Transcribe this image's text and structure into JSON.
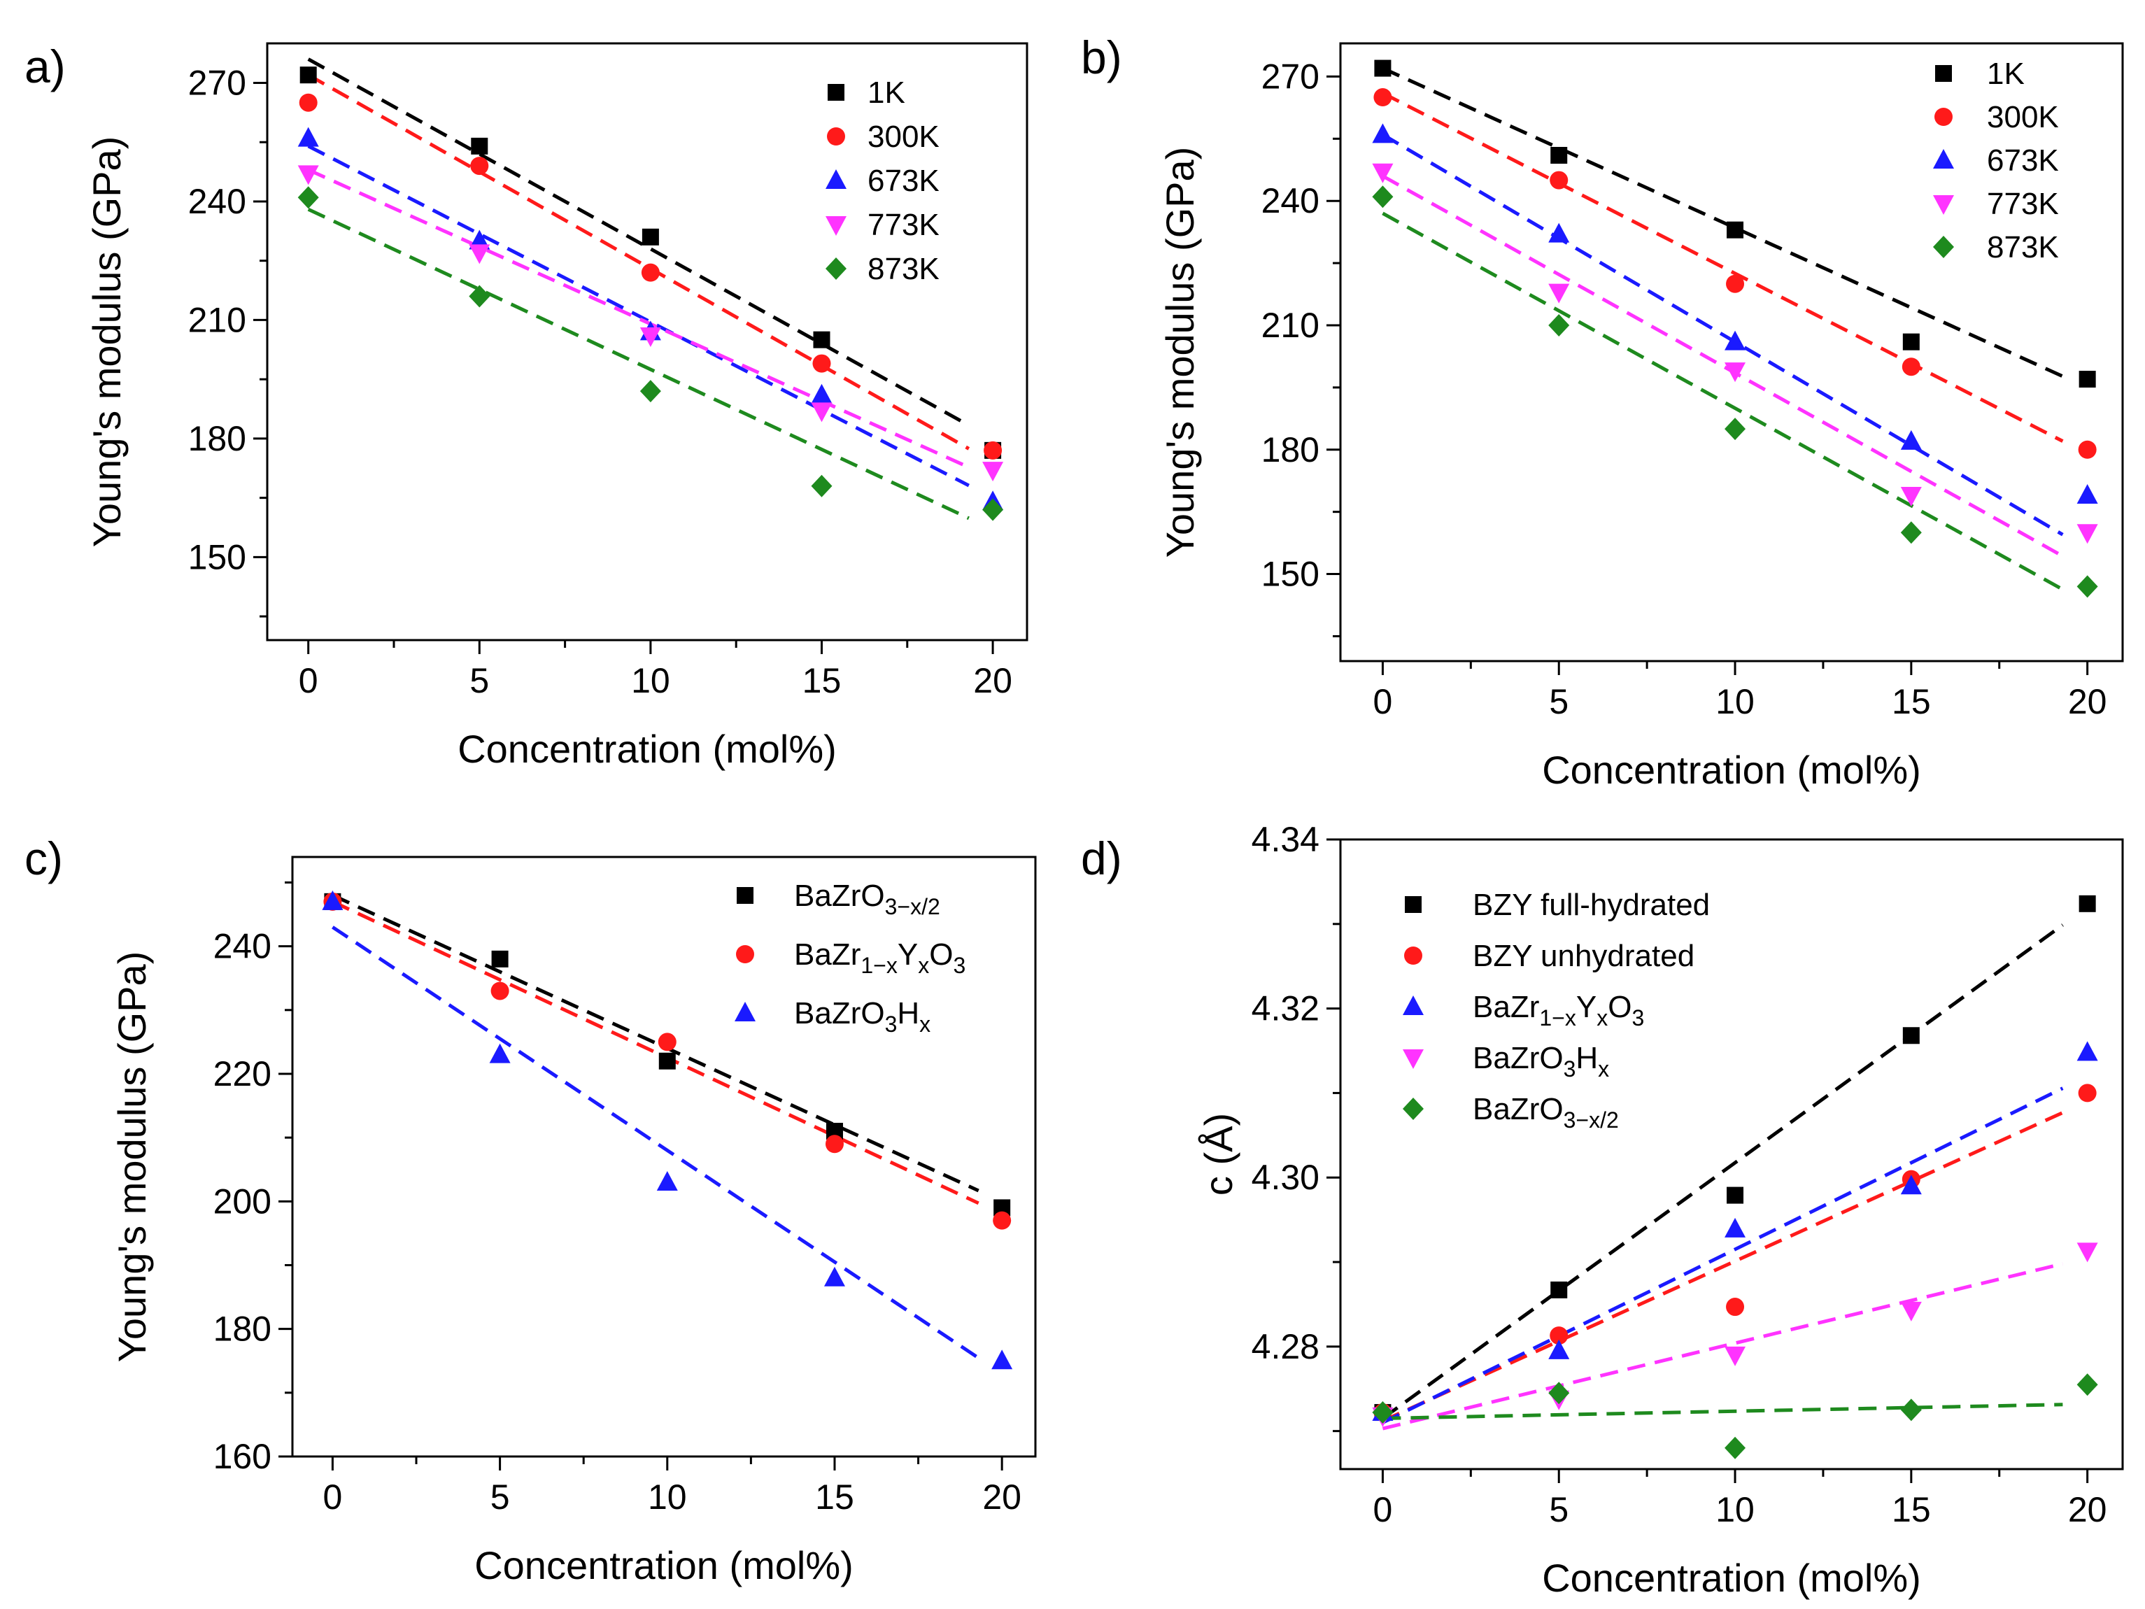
{
  "colors": {
    "black": "#000000",
    "red": "#ff1a1a",
    "blue": "#1a1aff",
    "magenta": "#ff33ff",
    "green": "#1e8a1e"
  },
  "chart_data": [
    {
      "panel_label": "a)",
      "type": "scatter",
      "xlabel": "Concentration (mol%)",
      "ylabel": "Young's modulus (GPa)",
      "xlim": [
        -1.2,
        21
      ],
      "ylim": [
        129,
        280
      ],
      "xticks": [
        "0",
        "5",
        "10",
        "15",
        "20"
      ],
      "yticks": [
        "150",
        "180",
        "210",
        "240",
        "270"
      ],
      "legend_position": "top-right",
      "x": [
        0,
        5,
        10,
        15,
        20
      ],
      "series": [
        {
          "name": "1K",
          "marker": "square",
          "color": "#000000",
          "values": [
            272,
            254,
            231,
            205,
            177
          ],
          "fit": [
            276,
            180
          ]
        },
        {
          "name": "300K",
          "marker": "circle",
          "color": "#ff1a1a",
          "values": [
            265,
            249,
            222,
            199,
            177
          ],
          "fit": [
            272,
            174
          ]
        },
        {
          "name": "673K",
          "marker": "triangle-up",
          "color": "#1a1aff",
          "values": [
            256,
            230,
            207,
            191,
            164
          ],
          "fit": [
            254,
            165
          ]
        },
        {
          "name": "773K",
          "marker": "triangle-down",
          "color": "#ff33ff",
          "values": [
            247,
            227,
            206,
            187,
            172
          ],
          "fit": [
            248,
            170
          ]
        },
        {
          "name": "873K",
          "marker": "diamond",
          "color": "#1e8a1e",
          "values": [
            241,
            216,
            192,
            168,
            162
          ],
          "fit": [
            238,
            157
          ]
        }
      ]
    },
    {
      "panel_label": "b)",
      "type": "scatter",
      "xlabel": "Concentration (mol%)",
      "ylabel": "Young's modulus (GPa)",
      "xlim": [
        -1.2,
        21
      ],
      "ylim": [
        129,
        278
      ],
      "xticks": [
        "0",
        "5",
        "10",
        "15",
        "20"
      ],
      "yticks": [
        "150",
        "180",
        "210",
        "240",
        "270"
      ],
      "legend_position": "top-right",
      "x": [
        0,
        5,
        10,
        15,
        20
      ],
      "series": [
        {
          "name": "1K",
          "marker": "square",
          "color": "#000000",
          "values": [
            272,
            251,
            233,
            206,
            197
          ],
          "fit": [
            272,
            195
          ]
        },
        {
          "name": "300K",
          "marker": "circle",
          "color": "#ff1a1a",
          "values": [
            265,
            245,
            220,
            200,
            180
          ],
          "fit": [
            266,
            179
          ]
        },
        {
          "name": "673K",
          "marker": "triangle-up",
          "color": "#1a1aff",
          "values": [
            256,
            232,
            206,
            182,
            169
          ],
          "fit": [
            256,
            156
          ]
        },
        {
          "name": "773K",
          "marker": "triangle-down",
          "color": "#ff33ff",
          "values": [
            247,
            218,
            199,
            169,
            160
          ],
          "fit": [
            246,
            151
          ]
        },
        {
          "name": "873K",
          "marker": "diamond",
          "color": "#1e8a1e",
          "values": [
            241,
            210,
            185,
            160,
            147
          ],
          "fit": [
            237,
            143
          ]
        }
      ]
    },
    {
      "panel_label": "c)",
      "type": "scatter",
      "xlabel": "Concentration (mol%)",
      "ylabel": "Young's modulus (GPa)",
      "xlim": [
        -1.2,
        21
      ],
      "ylim": [
        160,
        254
      ],
      "xticks": [
        "0",
        "5",
        "10",
        "15",
        "20"
      ],
      "yticks": [
        "160",
        "180",
        "200",
        "220",
        "240"
      ],
      "legend_position": "top-right",
      "x": [
        0,
        5,
        10,
        15,
        20
      ],
      "series": [
        {
          "name": "BaZrO3−x/2",
          "label_parts": {
            "base": "BaZrO",
            "sub": "3−x/2",
            "tail": ""
          },
          "marker": "square",
          "color": "#000000",
          "values": [
            247,
            238,
            222,
            211,
            199
          ],
          "fit": [
            248,
            200
          ]
        },
        {
          "name": "BaZr1−xYxO3",
          "label_parts": {
            "base": "BaZr",
            "sub": "1−x",
            "mid": "Y",
            "sub2": "x",
            "tail": "O",
            "sub3": "3"
          },
          "marker": "circle",
          "color": "#ff1a1a",
          "values": [
            247,
            233,
            225,
            209,
            197
          ],
          "fit": [
            247,
            198
          ]
        },
        {
          "name": "BaZrO3Hx",
          "label_parts": {
            "base": "BaZrO",
            "sub": "3",
            "mid": "H",
            "sub2": "x"
          },
          "marker": "triangle-up",
          "color": "#1a1aff",
          "values": [
            247,
            223,
            203,
            188,
            175
          ],
          "fit": [
            243,
            173
          ]
        }
      ]
    },
    {
      "panel_label": "d)",
      "type": "scatter",
      "xlabel": "Concentration (mol%)",
      "ylabel": "c (Å)",
      "xlim": [
        -1.2,
        21
      ],
      "ylim": [
        4.2655,
        4.34
      ],
      "xticks": [
        "0",
        "5",
        "10",
        "15",
        "20"
      ],
      "yticks": [
        "4.28",
        "4.30",
        "4.32",
        "4.34"
      ],
      "legend_position": "top-left",
      "x": [
        0,
        5,
        10,
        15,
        20
      ],
      "series": [
        {
          "name": "BZY full-hydrated",
          "marker": "square",
          "color": "#000000",
          "values": [
            4.2722,
            4.2867,
            4.2979,
            4.3168,
            4.3324
          ],
          "fit": [
            4.2715,
            4.332
          ]
        },
        {
          "name": "BZY unhydrated",
          "marker": "circle",
          "color": "#ff1a1a",
          "values": [
            4.2722,
            4.2813,
            4.2847,
            4.2998,
            4.31
          ],
          "fit": [
            4.2712,
            4.309
          ]
        },
        {
          "name": "BaZr1−xYxO3",
          "label_parts": {
            "base": "BaZr",
            "sub": "1−x",
            "mid": "Y",
            "sub2": "x",
            "tail": "O",
            "sub3": "3"
          },
          "marker": "triangle-up",
          "color": "#1a1aff",
          "values": [
            4.2722,
            4.2795,
            4.2939,
            4.299,
            4.3148
          ],
          "fit": [
            4.271,
            4.312
          ]
        },
        {
          "name": "BaZrO3Hx",
          "label_parts": {
            "base": "BaZrO",
            "sub": "3",
            "mid": "H",
            "sub2": "x"
          },
          "marker": "triangle-down",
          "color": "#ff33ff",
          "values": [
            4.2718,
            4.2738,
            4.279,
            4.2843,
            4.2913
          ],
          "fit": [
            4.2703,
            4.2905
          ]
        },
        {
          "name": "BaZrO3−x/2",
          "label_parts": {
            "base": "BaZrO",
            "sub": "3−x/2",
            "tail": ""
          },
          "marker": "diamond",
          "color": "#1e8a1e",
          "values": [
            4.2722,
            4.2745,
            4.268,
            4.2725,
            4.2755
          ],
          "fit": [
            4.2715,
            4.2732
          ]
        }
      ]
    }
  ]
}
